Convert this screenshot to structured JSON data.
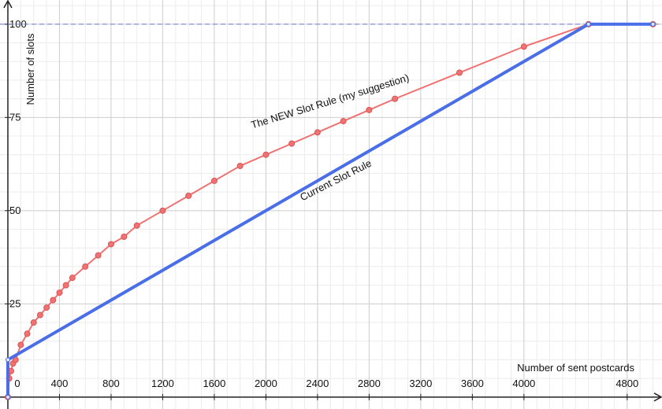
{
  "chart_data": {
    "type": "line",
    "x_label": "Number of sent postcards",
    "y_label": "Number of slots",
    "xlim": [
      -61,
      5070
    ],
    "ylim": [
      -3.2,
      106.5
    ],
    "xticks": [
      0,
      400,
      800,
      1200,
      1600,
      2000,
      2400,
      2800,
      3200,
      3600,
      4000,
      4800
    ],
    "yticks": [
      25,
      50,
      75,
      100
    ],
    "grid": true,
    "reference_line": 100,
    "series": [
      {
        "name": "The NEW Slot Rule (my suggestion)",
        "color": "#f07272",
        "x": [
          0,
          10,
          25,
          40,
          60,
          100,
          150,
          200,
          250,
          300,
          350,
          400,
          450,
          500,
          600,
          700,
          800,
          900,
          1000,
          1200,
          1400,
          1600,
          1800,
          2000,
          2200,
          2400,
          2600,
          2800,
          3000,
          3500,
          4000,
          4500,
          5000
        ],
        "values": [
          0,
          5,
          7,
          9,
          10,
          14,
          17,
          20,
          22,
          24,
          26,
          28,
          30,
          32,
          35,
          38,
          41,
          43,
          46,
          50,
          54,
          58,
          62,
          65,
          68,
          71,
          74,
          77,
          80,
          87,
          94,
          100,
          100
        ]
      },
      {
        "name": "Current Slot Rule",
        "color": "#4a6ee8",
        "x": [
          0,
          0,
          4500,
          5000
        ],
        "values": [
          0,
          10,
          100,
          100
        ]
      }
    ]
  }
}
